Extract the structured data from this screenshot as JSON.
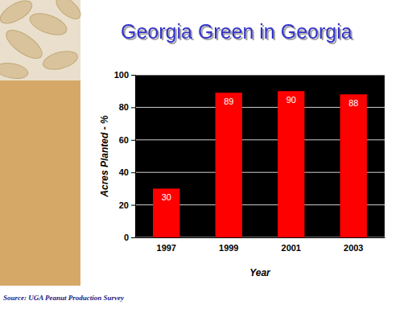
{
  "chart_data": {
    "type": "bar",
    "title": "Georgia Green in Georgia",
    "x_label": "Year",
    "y_label": "Acres Planted - %",
    "annotations": [
      "Source: UGA Peanut Production Survey"
    ],
    "categories": [
      "1997",
      "1999",
      "2001",
      "2003"
    ],
    "values": [
      30,
      89,
      90,
      88
    ],
    "color": "#ff0000",
    "ylim": [
      0,
      100
    ],
    "yticks": [
      0,
      20,
      40,
      60,
      80,
      100
    ],
    "grid": true,
    "data_labels": true
  }
}
